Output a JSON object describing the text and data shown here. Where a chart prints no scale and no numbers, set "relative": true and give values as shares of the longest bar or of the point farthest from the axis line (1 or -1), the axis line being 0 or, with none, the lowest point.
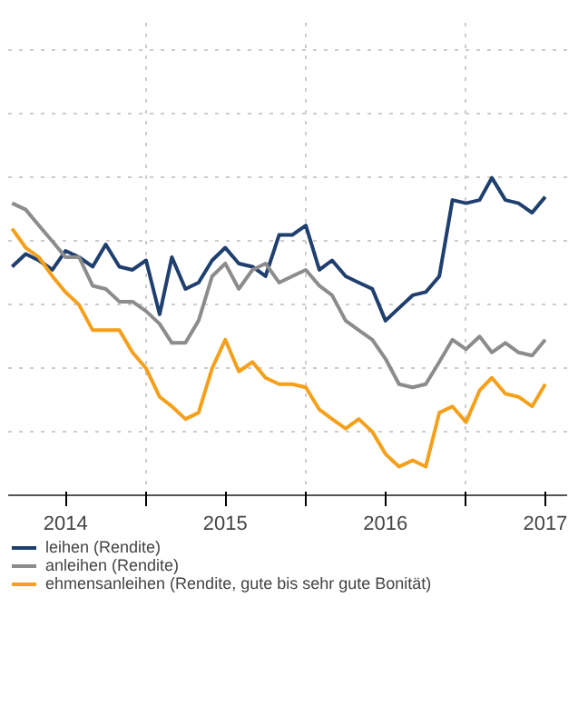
{
  "chart_data": {
    "type": "line",
    "relative": true,
    "grid": true,
    "legend": "bottom",
    "line_style": "solid",
    "marker": "none",
    "x": [
      "2014-03",
      "2014-04",
      "2014-05",
      "2014-06",
      "2014-07",
      "2014-08",
      "2014-09",
      "2014-10",
      "2014-11",
      "2014-12",
      "2015-01",
      "2015-02",
      "2015-03",
      "2015-04",
      "2015-05",
      "2015-06",
      "2015-07",
      "2015-08",
      "2015-09",
      "2015-10",
      "2015-11",
      "2015-12",
      "2016-01",
      "2016-02",
      "2016-03",
      "2016-04",
      "2016-05",
      "2016-06",
      "2016-07",
      "2016-08",
      "2016-09",
      "2016-10",
      "2016-11",
      "2016-12",
      "2017-01",
      "2017-02",
      "2017-03",
      "2017-04",
      "2017-05",
      "2017-06",
      "2017-07"
    ],
    "xlim": [
      "2014-02-20",
      "2017-08-20"
    ],
    "xticks": [
      {
        "value": "2014-07-01",
        "label": "2014"
      },
      {
        "value": "2015-01-01",
        "label": null
      },
      {
        "value": "2015-07-01",
        "label": "2015"
      },
      {
        "value": "2016-01-01",
        "label": null
      },
      {
        "value": "2016-07-01",
        "label": "2016"
      },
      {
        "value": "2017-01-01",
        "label": null
      },
      {
        "value": "2017-07-01",
        "label": "2017"
      }
    ],
    "series": [
      {
        "name": "leihen (Rendite)",
        "color": "#1f3f6e",
        "values": [
          0.72,
          0.76,
          0.74,
          0.71,
          0.77,
          0.75,
          0.72,
          0.79,
          0.72,
          0.71,
          0.74,
          0.57,
          0.75,
          0.65,
          0.67,
          0.74,
          0.78,
          0.73,
          0.72,
          0.69,
          0.82,
          0.82,
          0.85,
          0.71,
          0.74,
          0.69,
          0.67,
          0.65,
          0.55,
          0.59,
          0.63,
          0.64,
          0.69,
          0.93,
          0.92,
          0.93,
          1.0,
          0.93,
          0.92,
          0.89,
          0.94
        ]
      },
      {
        "name": "anleihen (Rendite)",
        "color": "#8c8c8c",
        "values": [
          0.92,
          0.9,
          0.85,
          0.8,
          0.75,
          0.75,
          0.66,
          0.65,
          0.61,
          0.61,
          0.58,
          0.54,
          0.48,
          0.48,
          0.55,
          0.69,
          0.73,
          0.65,
          0.71,
          0.73,
          0.67,
          0.69,
          0.71,
          0.66,
          0.63,
          0.55,
          0.52,
          0.49,
          0.43,
          0.35,
          0.34,
          0.35,
          0.42,
          0.49,
          0.46,
          0.5,
          0.45,
          0.48,
          0.45,
          0.44,
          0.49
        ]
      },
      {
        "name": "ehmensanleihen (Rendite, gute bis sehr gute Bonität)",
        "color": "#f5a01a",
        "values": [
          0.84,
          0.78,
          0.75,
          0.69,
          0.64,
          0.6,
          0.52,
          0.52,
          0.52,
          0.45,
          0.4,
          0.31,
          0.28,
          0.24,
          0.26,
          0.4,
          0.49,
          0.39,
          0.42,
          0.37,
          0.35,
          0.35,
          0.34,
          0.27,
          0.24,
          0.21,
          0.24,
          0.2,
          0.13,
          0.09,
          0.11,
          0.09,
          0.26,
          0.28,
          0.23,
          0.33,
          0.37,
          0.32,
          0.31,
          0.28,
          0.35
        ]
      }
    ]
  }
}
